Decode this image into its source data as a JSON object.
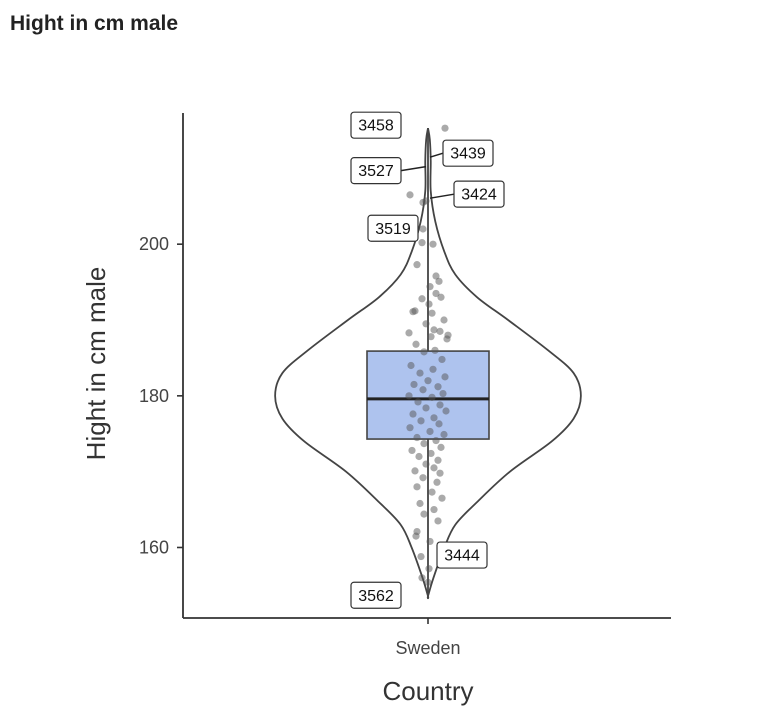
{
  "page": {
    "title": "Hight in cm male"
  },
  "chart_data": {
    "type": "violin",
    "xlabel": "Country",
    "ylabel": "Hight in cm male",
    "categories": [
      "Sweden"
    ],
    "yticks": [
      160,
      180,
      200
    ],
    "ylim": [
      150.7,
      217.3
    ],
    "grid": false,
    "violin": {
      "density": [
        [
          153.6,
          0.0
        ],
        [
          156,
          0.03
        ],
        [
          160,
          0.09
        ],
        [
          163,
          0.15
        ],
        [
          166,
          0.27
        ],
        [
          170,
          0.45
        ],
        [
          174,
          0.68
        ],
        [
          177,
          0.8
        ],
        [
          180,
          0.84
        ],
        [
          183,
          0.8
        ],
        [
          186,
          0.66
        ],
        [
          190,
          0.44
        ],
        [
          193,
          0.27
        ],
        [
          196,
          0.15
        ],
        [
          199,
          0.09
        ],
        [
          203,
          0.04
        ],
        [
          207,
          0.015
        ],
        [
          211,
          0.015
        ],
        [
          213.8,
          0.01
        ],
        [
          215.3,
          0.0
        ]
      ]
    },
    "box": {
      "q1": 174.3,
      "median": 179.6,
      "q3": 185.9,
      "whisker_low": 153.6,
      "whisker_high": 215.3,
      "fill": "#aec3ee"
    },
    "points": [
      {
        "y": 215.3,
        "dx": 0.17
      },
      {
        "y": 206.5,
        "dx": -0.18
      },
      {
        "y": 205.5,
        "dx": -0.05
      },
      {
        "y": 205.7,
        "dx": -0.02
      },
      {
        "y": 202.0,
        "dx": -0.05
      },
      {
        "y": 200.2,
        "dx": -0.06
      },
      {
        "y": 200.0,
        "dx": 0.05
      },
      {
        "y": 197.3,
        "dx": -0.11
      },
      {
        "y": 195.8,
        "dx": 0.08
      },
      {
        "y": 195.1,
        "dx": 0.11
      },
      {
        "y": 194.4,
        "dx": 0.02
      },
      {
        "y": 193.5,
        "dx": 0.08
      },
      {
        "y": 192.8,
        "dx": -0.06
      },
      {
        "y": 193.0,
        "dx": 0.13
      },
      {
        "y": 192.1,
        "dx": 0.01
      },
      {
        "y": 191.1,
        "dx": -0.15
      },
      {
        "y": 191.2,
        "dx": -0.13
      },
      {
        "y": 190.9,
        "dx": 0.04
      },
      {
        "y": 190.0,
        "dx": 0.16
      },
      {
        "y": 189.5,
        "dx": -0.02
      },
      {
        "y": 188.7,
        "dx": 0.06
      },
      {
        "y": 188.3,
        "dx": -0.19
      },
      {
        "y": 188.0,
        "dx": 0.2
      },
      {
        "y": 188.5,
        "dx": 0.12
      },
      {
        "y": 187.8,
        "dx": 0.03
      },
      {
        "y": 187.5,
        "dx": 0.19
      },
      {
        "y": 186.8,
        "dx": -0.12
      },
      {
        "y": 186.0,
        "dx": 0.07
      },
      {
        "y": 185.8,
        "dx": -0.04
      },
      {
        "y": 184.8,
        "dx": 0.14
      },
      {
        "y": 184.0,
        "dx": -0.17
      },
      {
        "y": 183.5,
        "dx": 0.05
      },
      {
        "y": 183.0,
        "dx": -0.08
      },
      {
        "y": 182.5,
        "dx": 0.17
      },
      {
        "y": 182.0,
        "dx": 0.0
      },
      {
        "y": 181.5,
        "dx": -0.14
      },
      {
        "y": 181.2,
        "dx": 0.1
      },
      {
        "y": 180.8,
        "dx": -0.05
      },
      {
        "y": 180.3,
        "dx": 0.15
      },
      {
        "y": 180.0,
        "dx": -0.19
      },
      {
        "y": 179.8,
        "dx": 0.04
      },
      {
        "y": 179.2,
        "dx": -0.1
      },
      {
        "y": 178.8,
        "dx": 0.12
      },
      {
        "y": 178.4,
        "dx": -0.02
      },
      {
        "y": 178.0,
        "dx": 0.18
      },
      {
        "y": 177.6,
        "dx": -0.15
      },
      {
        "y": 177.1,
        "dx": 0.06
      },
      {
        "y": 176.7,
        "dx": -0.07
      },
      {
        "y": 176.3,
        "dx": 0.11
      },
      {
        "y": 175.8,
        "dx": -0.18
      },
      {
        "y": 175.3,
        "dx": 0.02
      },
      {
        "y": 174.9,
        "dx": 0.16
      },
      {
        "y": 174.5,
        "dx": -0.11
      },
      {
        "y": 174.1,
        "dx": 0.08
      },
      {
        "y": 173.7,
        "dx": -0.04
      },
      {
        "y": 173.2,
        "dx": 0.13
      },
      {
        "y": 172.8,
        "dx": -0.16
      },
      {
        "y": 172.4,
        "dx": 0.03
      },
      {
        "y": 172.0,
        "dx": -0.09
      },
      {
        "y": 171.5,
        "dx": 0.1
      },
      {
        "y": 171.0,
        "dx": -0.02
      },
      {
        "y": 170.5,
        "dx": 0.06
      },
      {
        "y": 170.1,
        "dx": -0.13
      },
      {
        "y": 169.8,
        "dx": 0.12
      },
      {
        "y": 169.2,
        "dx": -0.05
      },
      {
        "y": 168.6,
        "dx": 0.09
      },
      {
        "y": 168.0,
        "dx": -0.11
      },
      {
        "y": 167.3,
        "dx": 0.04
      },
      {
        "y": 166.5,
        "dx": 0.14
      },
      {
        "y": 165.8,
        "dx": -0.08
      },
      {
        "y": 165.0,
        "dx": 0.06
      },
      {
        "y": 164.4,
        "dx": -0.04
      },
      {
        "y": 163.5,
        "dx": 0.1
      },
      {
        "y": 162.1,
        "dx": -0.11
      },
      {
        "y": 161.5,
        "dx": -0.12
      },
      {
        "y": 160.8,
        "dx": 0.02
      },
      {
        "y": 158.8,
        "dx": -0.07
      },
      {
        "y": 157.2,
        "dx": 0.01
      },
      {
        "y": 156.0,
        "dx": -0.06
      },
      {
        "y": 155.4,
        "dx": 0.0
      }
    ],
    "labels": [
      {
        "text": "3458",
        "y": 215.3,
        "dx": -0.27,
        "dy_px": -3,
        "leader": false
      },
      {
        "text": "3439",
        "y": 212.0,
        "dx": 0.15,
        "dy_px": 0,
        "leader": true
      },
      {
        "text": "3527",
        "y": 209.7,
        "dx": -0.27,
        "dy_px": 0,
        "leader": true
      },
      {
        "text": "3424",
        "y": 206.6,
        "dx": 0.26,
        "dy_px": 0,
        "leader": true
      },
      {
        "text": "3519",
        "y": 202.1,
        "dx": -0.1,
        "dy_px": 0,
        "leader": false
      },
      {
        "text": "3444",
        "y": 159.0,
        "dx": 0.09,
        "dy_px": 0,
        "leader": false
      },
      {
        "text": "3562",
        "y": 153.7,
        "dx": -0.27,
        "dy_px": 0,
        "leader": false
      }
    ],
    "colors": {
      "box_fill": "#aec3ee",
      "points": "#555555",
      "lines": "#444444",
      "labels_border": "#333333"
    }
  }
}
